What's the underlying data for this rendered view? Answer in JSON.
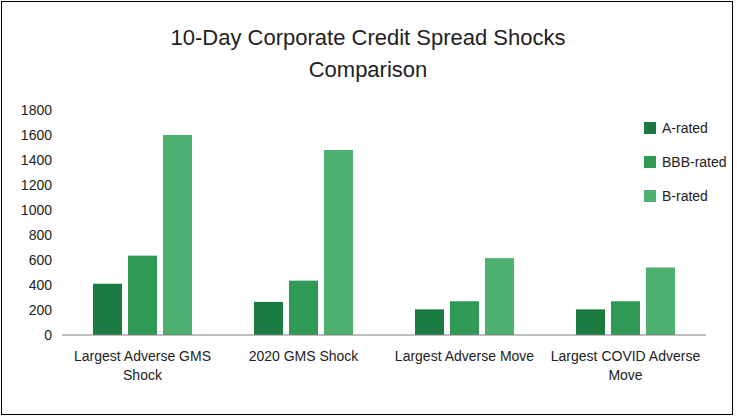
{
  "chart_data": {
    "type": "bar",
    "title": "10-Day Corporate Credit Spread Shocks Comparison",
    "categories": [
      "Largest Adverse GMS Shock",
      "2020 GMS Shock",
      "Largest Adverse Move",
      "Largest COVID Adverse Move"
    ],
    "series": [
      {
        "name": "A-rated",
        "color": "#1b7a40",
        "values": [
          410,
          265,
          205,
          205
        ]
      },
      {
        "name": "BBB-rated",
        "color": "#2e9a55",
        "values": [
          635,
          435,
          270,
          270
        ]
      },
      {
        "name": "B-rated",
        "color": "#4daf70",
        "values": [
          1600,
          1480,
          615,
          540
        ]
      }
    ],
    "ylim": [
      0,
      1800
    ],
    "yticks": [
      0,
      200,
      400,
      600,
      800,
      1000,
      1200,
      1400,
      1600,
      1800
    ],
    "grid": false,
    "legend": "top-right"
  }
}
